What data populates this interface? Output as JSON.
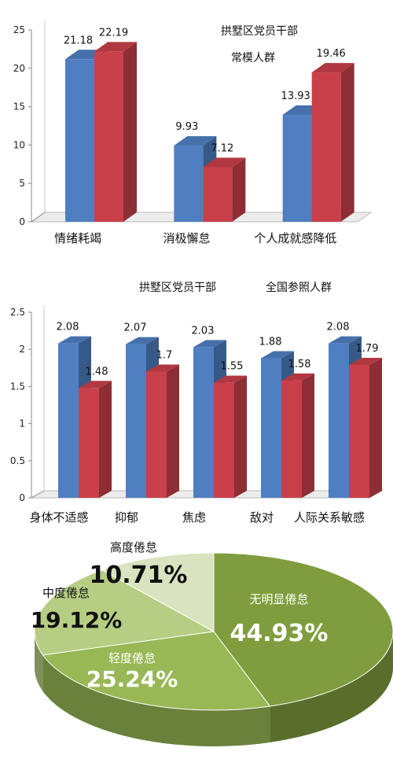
{
  "chart_data": [
    {
      "type": "bar",
      "title": "",
      "series_labels": [
        "拱墅区党员干部",
        "常模人群"
      ],
      "categories": [
        "情绪耗竭",
        "消极懈怠",
        "个人成就感降低"
      ],
      "series": [
        {
          "name": "拱墅区党员干部",
          "color": "#4f7fc1",
          "values": [
            21.18,
            9.93,
            13.93
          ]
        },
        {
          "name": "常模人群",
          "color": "#c9404a",
          "values": [
            22.19,
            7.12,
            19.46
          ]
        }
      ],
      "value_labels": [
        [
          "21.18",
          "9.93",
          "13.93"
        ],
        [
          "22.19",
          "7.12",
          "19.46"
        ]
      ],
      "yticks": [
        "0",
        "5",
        "10",
        "15",
        "20",
        "25"
      ],
      "ylim": [
        0,
        25
      ]
    },
    {
      "type": "bar",
      "title": "",
      "series_labels": [
        "拱墅区党员干部",
        "全国参照人群"
      ],
      "categories": [
        "身体不适感",
        "抑郁",
        "焦虑",
        "敌对",
        "人际关系敏感"
      ],
      "series": [
        {
          "name": "拱墅区党员干部",
          "color": "#4f7fc1",
          "values": [
            2.08,
            2.07,
            2.03,
            1.88,
            2.08
          ]
        },
        {
          "name": "全国参照人群",
          "color": "#c9404a",
          "values": [
            1.48,
            1.7,
            1.55,
            1.58,
            1.79
          ]
        }
      ],
      "value_labels": [
        [
          "2.08",
          "2.07",
          "2.03",
          "1.88",
          "2.08"
        ],
        [
          "1.48",
          "1.7",
          "1.55",
          "1.58",
          "1.79"
        ]
      ],
      "yticks": [
        "0",
        "0.5",
        "1",
        "1.5",
        "2",
        "2.5"
      ],
      "ylim": [
        0,
        2.5
      ]
    },
    {
      "type": "pie",
      "slices": [
        {
          "label": "无明显倦怠",
          "value": 44.93,
          "text": "44.93%",
          "color": "#7f9d3e"
        },
        {
          "label": "轻度倦怠",
          "value": 25.24,
          "text": "25.24%",
          "color": "#98b856"
        },
        {
          "label": "中度倦怠",
          "value": 19.12,
          "text": "19.12%",
          "color": "#b6cd84"
        },
        {
          "label": "高度倦怠",
          "value": 10.71,
          "text": "10.71%",
          "color": "#d9e3bf"
        }
      ]
    }
  ]
}
